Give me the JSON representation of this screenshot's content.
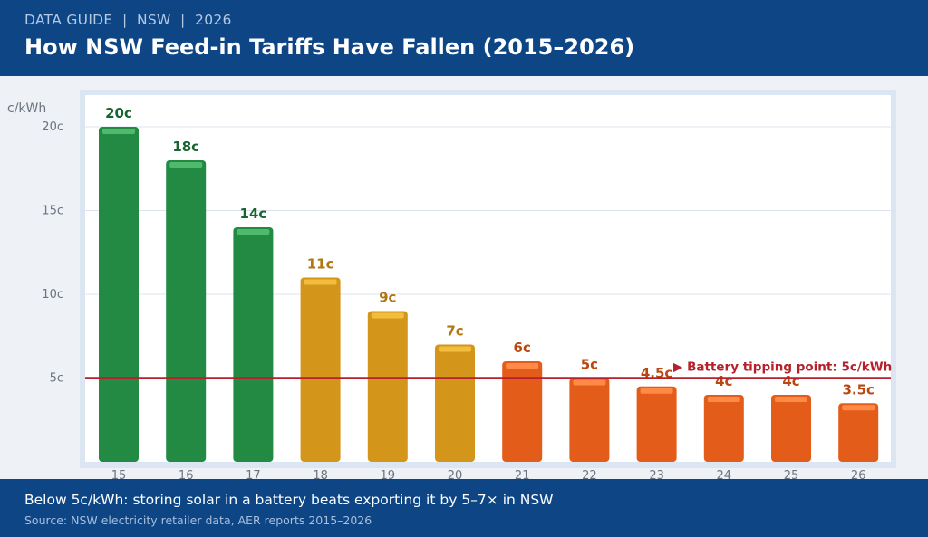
{
  "header": {
    "eyebrow": "DATA GUIDE  |  NSW  |  2026",
    "title": "How NSW Feed-in Tariffs Have Fallen (2015–2026)"
  },
  "footer": {
    "takeaway": "Below 5c/kWh: storing solar in a battery beats exporting it by 5–7× in NSW",
    "source": "Source: NSW electricity retailer data, AER reports 2015–2026"
  },
  "chart_data": {
    "type": "bar",
    "title": "",
    "xlabel": "",
    "ylabel": "c/kWh",
    "categories": [
      "15",
      "16",
      "17",
      "18",
      "19",
      "20",
      "21",
      "22",
      "23",
      "24",
      "25",
      "26"
    ],
    "values": [
      20,
      18,
      14,
      11,
      9,
      7,
      6,
      5,
      4.5,
      4,
      4,
      3.5
    ],
    "value_labels": [
      "20c",
      "18c",
      "14c",
      "11c",
      "9c",
      "7c",
      "6c",
      "5c",
      "4.5c",
      "4c",
      "4c",
      "3.5c"
    ],
    "ylim": [
      0,
      20
    ],
    "yticks": [
      5,
      10,
      15,
      20
    ],
    "ytick_labels": [
      "5c",
      "10c",
      "15c",
      "20c"
    ],
    "grid": true,
    "reference_line": {
      "value": 5,
      "label": "▶ Battery tipping point: 5c/kWh",
      "color": "#b5202a"
    },
    "bar_colors": [
      "#238a44",
      "#238a44",
      "#238a44",
      "#d4961a",
      "#d4961a",
      "#d4961a",
      "#e35c19",
      "#e35c19",
      "#e35c19",
      "#e35c19",
      "#e35c19",
      "#e35c19"
    ],
    "label_colors": [
      "#17652f",
      "#17652f",
      "#17652f",
      "#b07612",
      "#b07612",
      "#b07612",
      "#b8480f",
      "#b8480f",
      "#b8480f",
      "#b8480f",
      "#b8480f",
      "#b8480f"
    ],
    "highlight_colors": [
      "#4fba6c",
      "#4fba6c",
      "#4fba6c",
      "#f2bd3c",
      "#f2bd3c",
      "#f2bd3c",
      "#ff8a48",
      "#ff8a48",
      "#ff8a48",
      "#ff8a48",
      "#ff8a48",
      "#ff8a48"
    ]
  }
}
